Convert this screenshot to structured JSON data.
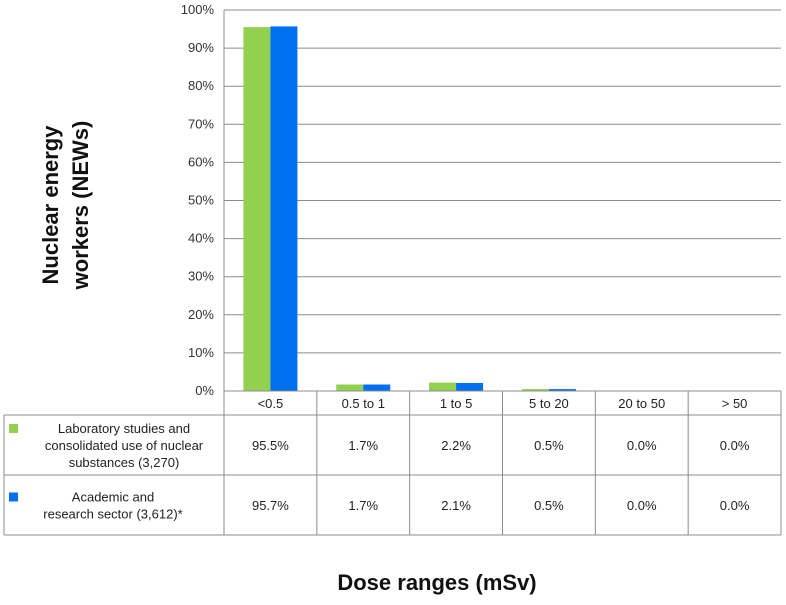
{
  "chart_data": {
    "type": "bar",
    "categories": [
      "<0.5",
      "0.5 to 1",
      "1 to 5",
      "5 to 20",
      "20 to 50",
      "> 50"
    ],
    "series": [
      {
        "name": "Laboratory studies and consolidated use of nuclear substances (3,270)",
        "legend_lines": [
          "Laboratory studies and",
          "consolidated use of nuclear",
          "substances (3,270)"
        ],
        "color": "#92d050",
        "values": [
          95.5,
          1.7,
          2.2,
          0.5,
          0.0,
          0.0
        ],
        "table_values": [
          "95.5%",
          "1.7%",
          "2.2%",
          "0.5%",
          "0.0%",
          "0.0%"
        ]
      },
      {
        "name": "Academic and research sector (3,612)*",
        "legend_lines": [
          "Academic and",
          "research sector (3,612)*"
        ],
        "color": "#0070f0",
        "values": [
          95.7,
          1.7,
          2.1,
          0.5,
          0.0,
          0.0
        ],
        "table_values": [
          "95.7%",
          "1.7%",
          "2.1%",
          "0.5%",
          "0.0%",
          "0.0%"
        ]
      }
    ],
    "ylabel_lines": [
      "Nuclear energy",
      "workers (NEWs)"
    ],
    "xlabel": "Dose ranges (mSv)",
    "ylim": [
      0,
      100
    ],
    "yticks": [
      "0%",
      "10%",
      "20%",
      "30%",
      "40%",
      "50%",
      "60%",
      "70%",
      "80%",
      "90%",
      "100%"
    ],
    "grid": true,
    "legend_placement": "data-table"
  }
}
